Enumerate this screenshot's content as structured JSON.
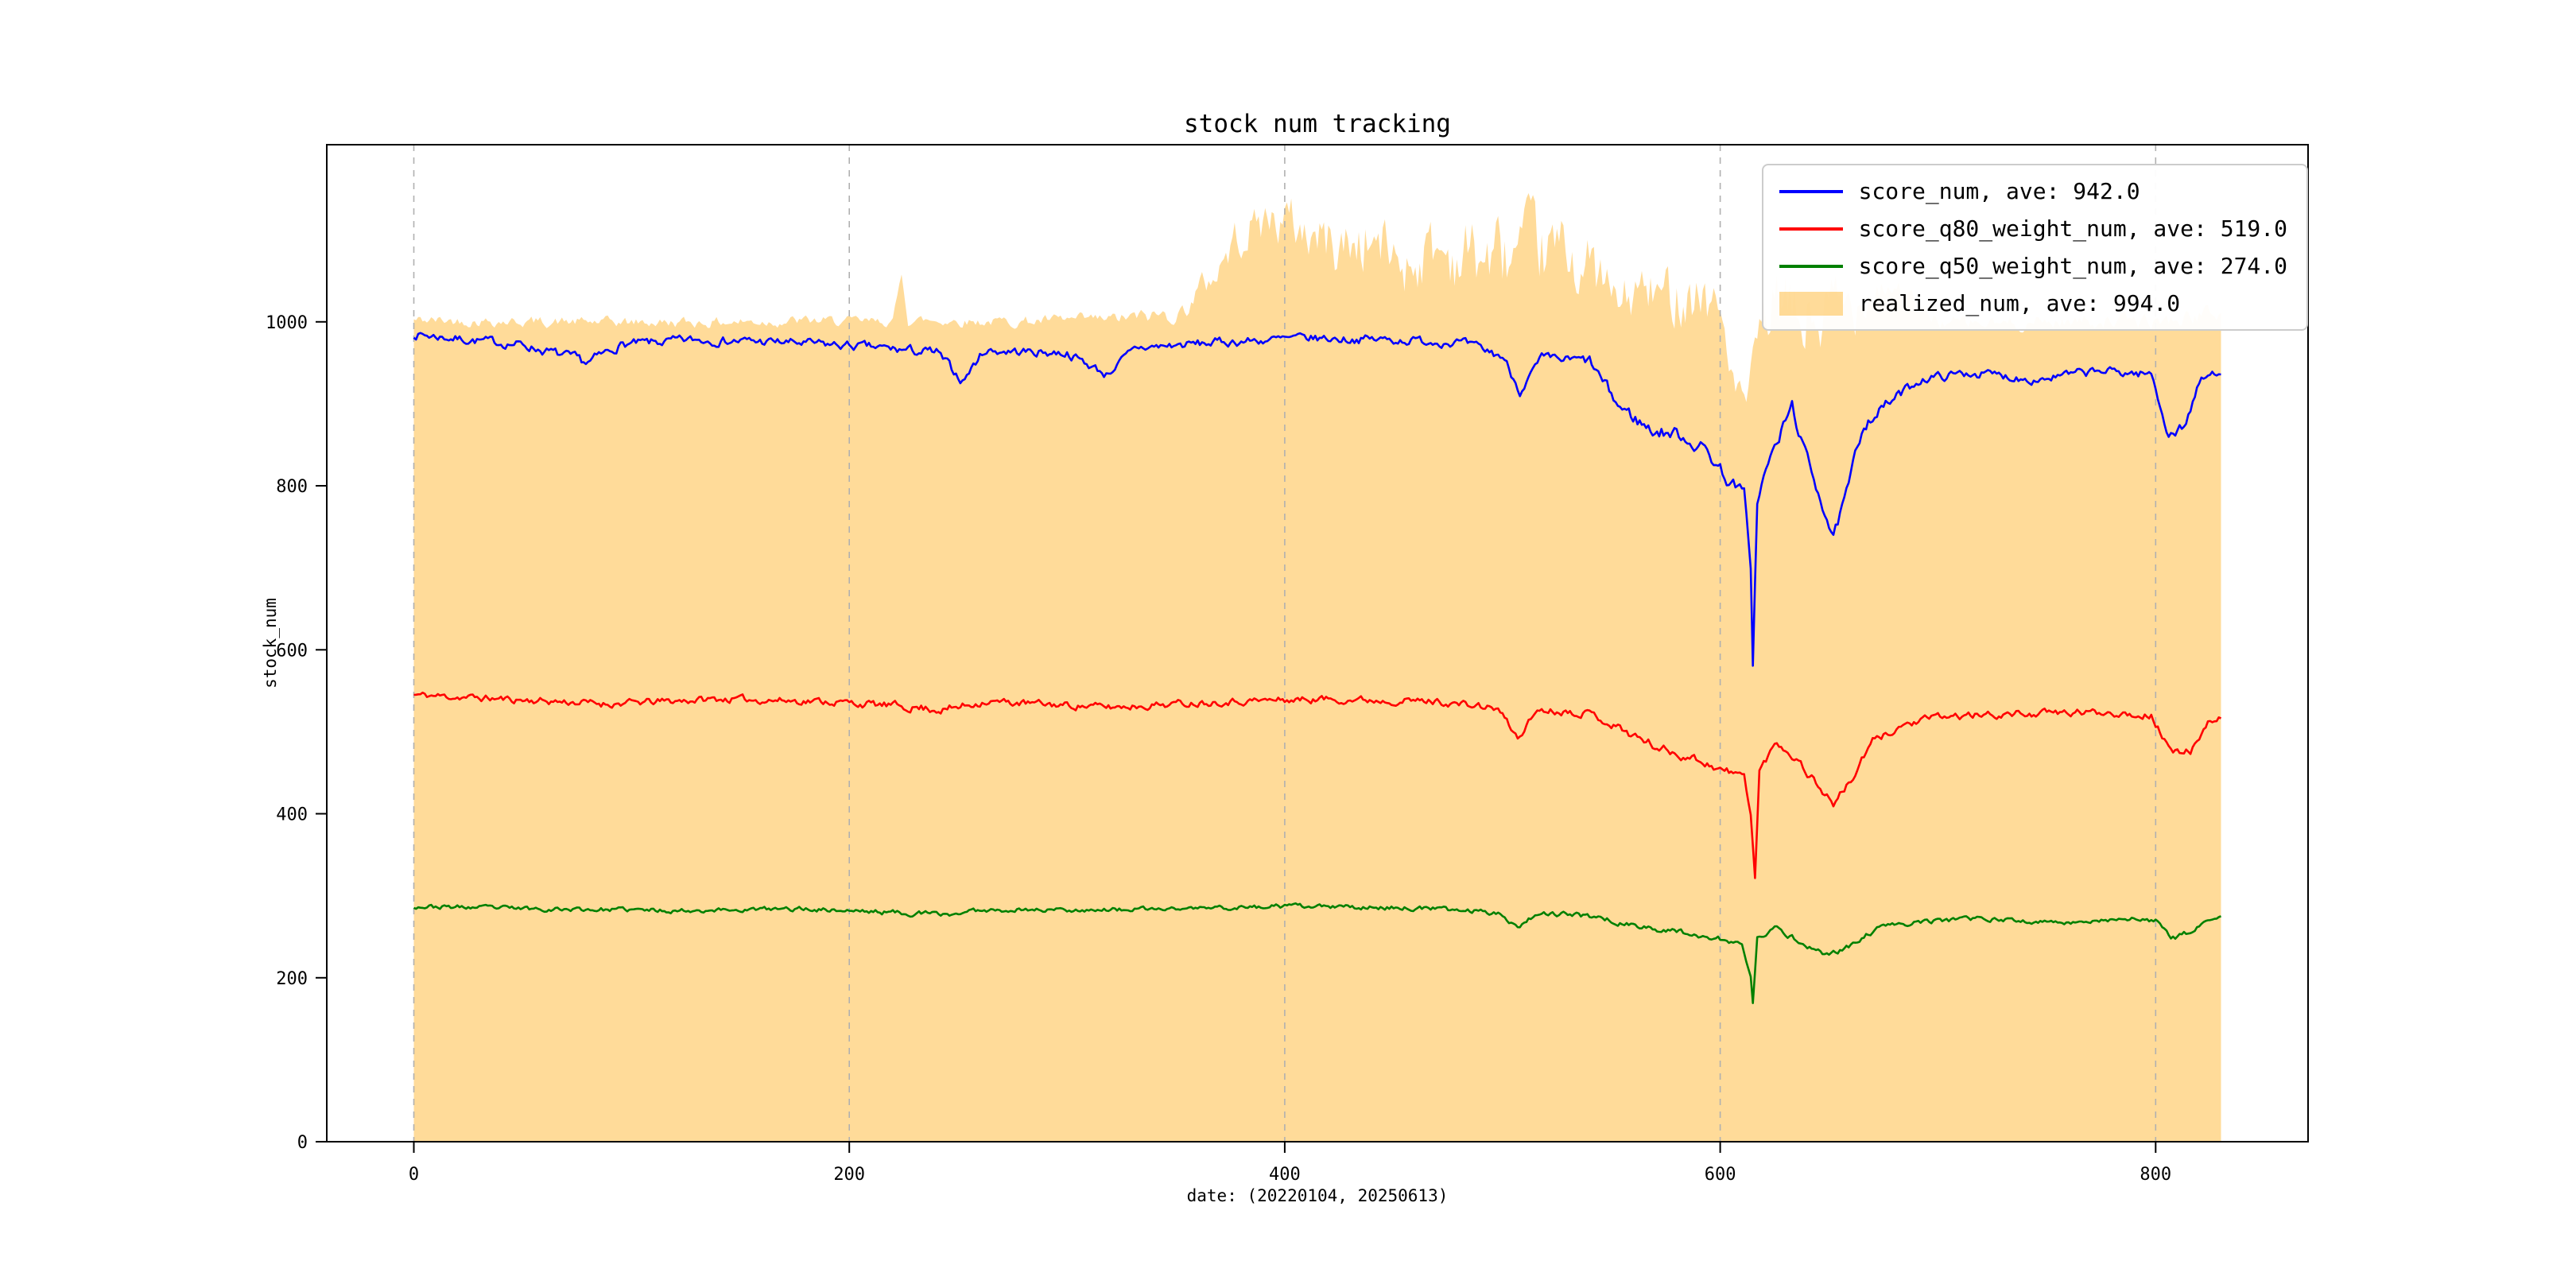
{
  "chart_data": {
    "type": "line",
    "title": "stock num tracking",
    "xlabel": "date: (20220104, 20250613)",
    "ylabel": "stock_num",
    "xlim": [
      -40,
      870
    ],
    "ylim": [
      0,
      1216
    ],
    "xticks": [
      0,
      200,
      400,
      600,
      800
    ],
    "yticks": [
      0,
      200,
      400,
      600,
      800,
      1000
    ],
    "x_range": [
      0,
      830
    ],
    "grid": "vertical-dashed",
    "grid_color": "#b0b0b0",
    "legend_position": "upper right",
    "series": [
      {
        "name": "score_num, ave: 942.0",
        "ave": 942.0,
        "type": "line",
        "color": "#0000ff",
        "seed": 7,
        "keypoints": [
          [
            0,
            985,
            5
          ],
          [
            25,
            978,
            5
          ],
          [
            50,
            972,
            5
          ],
          [
            80,
            950,
            6
          ],
          [
            95,
            972,
            5
          ],
          [
            130,
            978,
            5
          ],
          [
            170,
            975,
            5
          ],
          [
            205,
            970,
            5
          ],
          [
            240,
            962,
            6
          ],
          [
            252,
            928,
            5
          ],
          [
            262,
            965,
            5
          ],
          [
            300,
            962,
            5
          ],
          [
            318,
            936,
            5
          ],
          [
            332,
            968,
            5
          ],
          [
            370,
            975,
            5
          ],
          [
            410,
            980,
            5
          ],
          [
            450,
            978,
            5
          ],
          [
            480,
            975,
            5
          ],
          [
            500,
            958,
            6
          ],
          [
            508,
            916,
            5
          ],
          [
            518,
            955,
            5
          ],
          [
            540,
            952,
            6
          ],
          [
            553,
            898,
            8
          ],
          [
            568,
            868,
            8
          ],
          [
            582,
            862,
            8
          ],
          [
            594,
            842,
            8
          ],
          [
            604,
            806,
            8
          ],
          [
            611,
            792,
            5
          ],
          [
            614,
            700,
            3
          ],
          [
            615,
            582,
            2
          ],
          [
            617,
            780,
            4
          ],
          [
            621,
            820,
            6
          ],
          [
            627,
            858,
            8
          ],
          [
            633,
            898,
            7
          ],
          [
            639,
            838,
            8
          ],
          [
            646,
            788,
            8
          ],
          [
            652,
            736,
            6
          ],
          [
            658,
            788,
            8
          ],
          [
            666,
            878,
            8
          ],
          [
            678,
            902,
            6
          ],
          [
            692,
            930,
            5
          ],
          [
            715,
            938,
            5
          ],
          [
            745,
            930,
            5
          ],
          [
            775,
            940,
            5
          ],
          [
            798,
            936,
            5
          ],
          [
            806,
            862,
            6
          ],
          [
            813,
            872,
            6
          ],
          [
            821,
            930,
            5
          ],
          [
            830,
            940,
            4
          ]
        ]
      },
      {
        "name": "score_q80_weight_num, ave: 519.0",
        "ave": 519.0,
        "type": "line",
        "color": "#ff0000",
        "seed": 11,
        "keypoints": [
          [
            0,
            545,
            4
          ],
          [
            40,
            540,
            4
          ],
          [
            90,
            534,
            4
          ],
          [
            140,
            540,
            4
          ],
          [
            190,
            537,
            4
          ],
          [
            245,
            527,
            5
          ],
          [
            262,
            537,
            4
          ],
          [
            320,
            530,
            4
          ],
          [
            370,
            537,
            4
          ],
          [
            420,
            540,
            4
          ],
          [
            470,
            537,
            4
          ],
          [
            498,
            528,
            4
          ],
          [
            507,
            492,
            4
          ],
          [
            516,
            527,
            4
          ],
          [
            540,
            523,
            4
          ],
          [
            554,
            504,
            5
          ],
          [
            572,
            480,
            5
          ],
          [
            590,
            466,
            5
          ],
          [
            602,
            452,
            5
          ],
          [
            611,
            446,
            4
          ],
          [
            614,
            400,
            2
          ],
          [
            616,
            322,
            2
          ],
          [
            618,
            452,
            4
          ],
          [
            626,
            488,
            5
          ],
          [
            634,
            470,
            5
          ],
          [
            644,
            438,
            5
          ],
          [
            652,
            412,
            4
          ],
          [
            660,
            440,
            5
          ],
          [
            670,
            488,
            4
          ],
          [
            684,
            508,
            4
          ],
          [
            700,
            518,
            4
          ],
          [
            740,
            522,
            4
          ],
          [
            778,
            524,
            4
          ],
          [
            798,
            520,
            4
          ],
          [
            808,
            470,
            5
          ],
          [
            816,
            478,
            5
          ],
          [
            824,
            512,
            3
          ],
          [
            830,
            518,
            3
          ]
        ]
      },
      {
        "name": "score_q50_weight_num, ave: 274.0",
        "ave": 274.0,
        "type": "line",
        "color": "#008000",
        "seed": 23,
        "keypoints": [
          [
            0,
            287,
            2.5
          ],
          [
            60,
            284,
            2.5
          ],
          [
            120,
            282,
            2.5
          ],
          [
            180,
            284,
            2.5
          ],
          [
            245,
            277,
            3
          ],
          [
            262,
            283,
            2.5
          ],
          [
            330,
            283,
            2.5
          ],
          [
            400,
            287,
            2.5
          ],
          [
            460,
            285,
            2.5
          ],
          [
            498,
            280,
            3
          ],
          [
            507,
            262,
            3
          ],
          [
            516,
            279,
            2.5
          ],
          [
            542,
            275,
            3
          ],
          [
            562,
            262,
            3
          ],
          [
            582,
            256,
            3
          ],
          [
            600,
            247,
            3
          ],
          [
            610,
            240,
            2
          ],
          [
            614,
            200,
            1.5
          ],
          [
            615,
            168,
            1
          ],
          [
            617,
            248,
            2.5
          ],
          [
            626,
            260,
            3
          ],
          [
            638,
            242,
            3
          ],
          [
            649,
            228,
            3
          ],
          [
            660,
            238,
            3
          ],
          [
            672,
            260,
            3
          ],
          [
            690,
            268,
            2.5
          ],
          [
            720,
            272,
            2.5
          ],
          [
            755,
            267,
            2.5
          ],
          [
            788,
            272,
            2.5
          ],
          [
            800,
            269,
            2.5
          ],
          [
            807,
            247,
            3
          ],
          [
            816,
            256,
            3
          ],
          [
            825,
            271,
            2
          ],
          [
            830,
            273,
            2
          ]
        ]
      },
      {
        "name": "realized_num, ave: 994.0",
        "ave": 994.0,
        "type": "area",
        "color": "#ffa500",
        "opacity": 0.4,
        "seed": 42,
        "keypoints": [
          [
            0,
            1002,
            6
          ],
          [
            60,
            1000,
            6
          ],
          [
            120,
            999,
            6
          ],
          [
            180,
            1001,
            6
          ],
          [
            220,
            1000,
            5
          ],
          [
            224,
            1058,
            3
          ],
          [
            227,
            1002,
            6
          ],
          [
            270,
            1000,
            6
          ],
          [
            320,
            1003,
            7
          ],
          [
            352,
            1010,
            10
          ],
          [
            368,
            1060,
            20
          ],
          [
            380,
            1110,
            25
          ],
          [
            395,
            1128,
            28
          ],
          [
            410,
            1110,
            32
          ],
          [
            425,
            1092,
            36
          ],
          [
            440,
            1100,
            40
          ],
          [
            455,
            1072,
            36
          ],
          [
            468,
            1088,
            40
          ],
          [
            482,
            1082,
            44
          ],
          [
            498,
            1078,
            46
          ],
          [
            515,
            1082,
            44
          ],
          [
            530,
            1086,
            40
          ],
          [
            543,
            1058,
            38
          ],
          [
            553,
            1018,
            28
          ],
          [
            563,
            1038,
            34
          ],
          [
            573,
            1028,
            34
          ],
          [
            583,
            1044,
            38
          ],
          [
            593,
            1034,
            40
          ],
          [
            601,
            1002,
            28
          ],
          [
            607,
            918,
            16
          ],
          [
            612,
            902,
            12
          ],
          [
            617,
            975,
            25
          ],
          [
            624,
            1018,
            40
          ],
          [
            636,
            1000,
            48
          ],
          [
            648,
            1005,
            50
          ],
          [
            658,
            1012,
            44
          ],
          [
            666,
            1040,
            28
          ],
          [
            675,
            1048,
            20
          ],
          [
            684,
            1038,
            14
          ],
          [
            692,
            1010,
            10
          ],
          [
            702,
            1000,
            8
          ],
          [
            725,
            997,
            8
          ],
          [
            750,
            1000,
            8
          ],
          [
            775,
            1002,
            8
          ],
          [
            798,
            1000,
            8
          ],
          [
            812,
            1004,
            9
          ],
          [
            824,
            1010,
            9
          ],
          [
            830,
            1012,
            8
          ]
        ]
      }
    ]
  }
}
